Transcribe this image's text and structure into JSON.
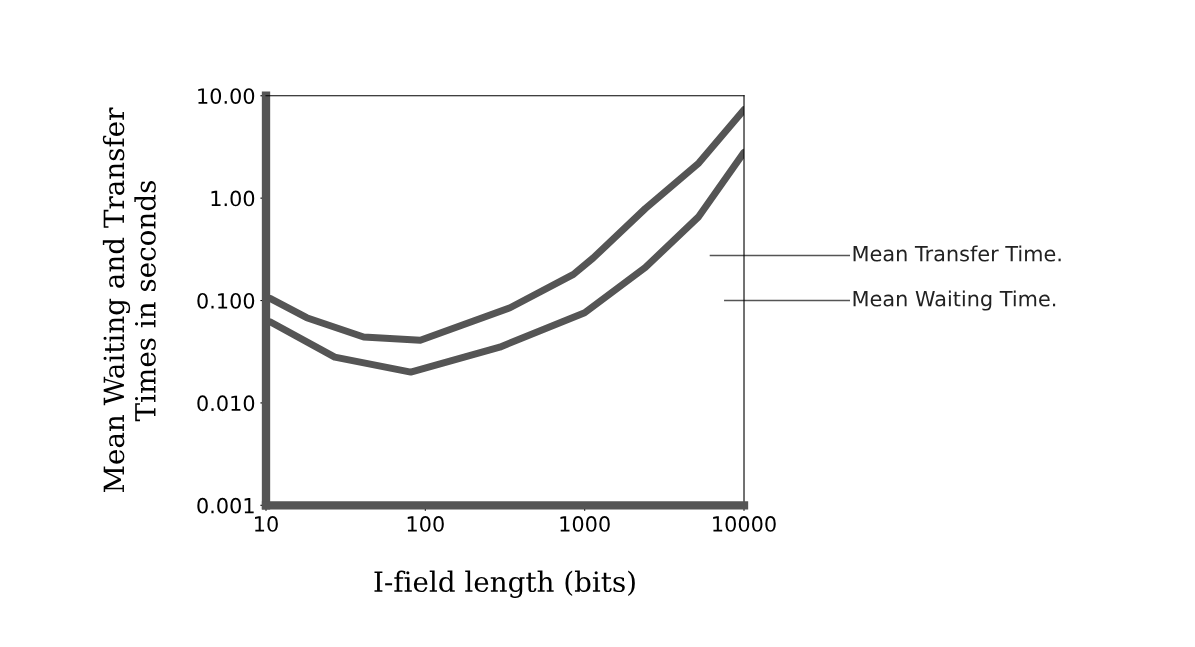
{
  "chart_data": {
    "type": "line",
    "xlabel": "I-field length (bits)",
    "ylabel": "Mean Waiting and Transfer\nTimes in seconds",
    "log": "xy",
    "xlim": [
      10,
      10000
    ],
    "ylim": [
      0.001,
      10
    ],
    "xticks": [
      10,
      100,
      1000,
      10000
    ],
    "yticks": [
      {
        "value": 10,
        "label": "10.00"
      },
      {
        "value": 1,
        "label": "1.00"
      },
      {
        "value": 0.1,
        "label": "0.100"
      },
      {
        "value": 0.01,
        "label": "0.010"
      },
      {
        "value": 0.001,
        "label": "0.001"
      }
    ],
    "grid": false,
    "legend": "right",
    "marker": "none",
    "line_style": "solid",
    "series": [
      {
        "name": "Mean Transfer Time.",
        "color": "#555555",
        "x": [
          10.6,
          18,
          41,
          93,
          340,
          850,
          1130,
          2400,
          5200,
          10000
        ],
        "values": [
          0.105,
          0.068,
          0.044,
          0.041,
          0.085,
          0.18,
          0.26,
          0.79,
          2.2,
          7.3
        ]
      },
      {
        "name": "Mean Waiting Time.",
        "color": "#555555",
        "x": [
          10.6,
          27,
          81,
          293,
          1000,
          2400,
          5200,
          10000
        ],
        "values": [
          0.062,
          0.028,
          0.02,
          0.035,
          0.076,
          0.21,
          0.66,
          2.8
        ]
      }
    ]
  }
}
